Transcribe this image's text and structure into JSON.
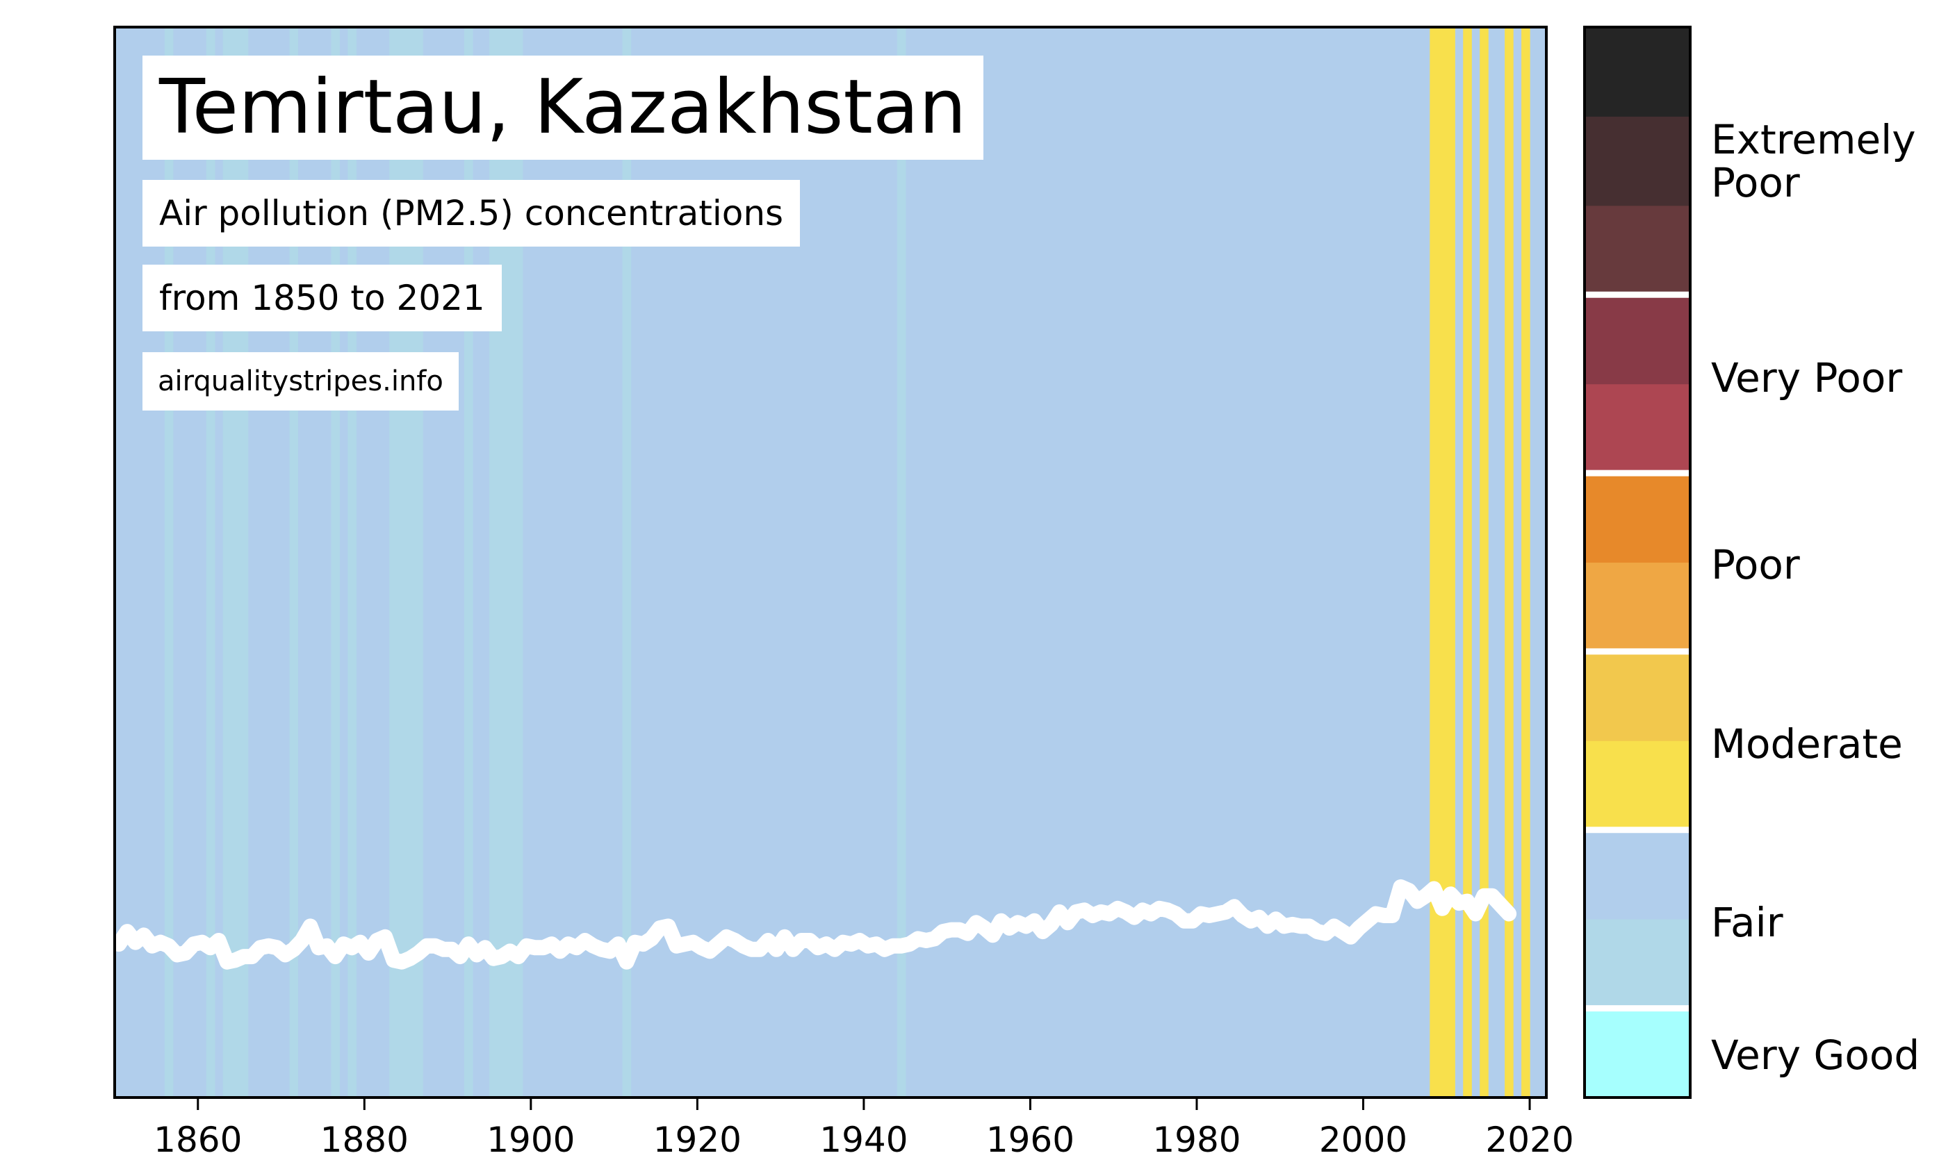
{
  "title": "Temirtau, Kazakhstan",
  "subtitle_line1": "Air pollution (PM2.5) concentrations",
  "subtitle_line2": "from 1850 to 2021",
  "source": "airqualitystripes.info",
  "colors": {
    "very_good": "#a6fffe",
    "fair_light": "#b0d8e8",
    "fair": "#b1ceec",
    "moderate_light": "#f8e04c",
    "moderate_dark": "#f2c84d",
    "poor_light": "#efa744",
    "poor_dark": "#e7892a",
    "very_poor_light": "#ad4652",
    "very_poor_dark": "#883a47",
    "extremely_poor_1": "#673a3d",
    "extremely_poor_2": "#462f31",
    "extremely_poor_3": "#252525",
    "line": "#ffffff"
  },
  "colorbar": {
    "labels": [
      "Very Good",
      "Fair",
      "Moderate",
      "Poor",
      "Very Poor",
      "Extremely Poor"
    ]
  },
  "chart_data": {
    "type": "heatmap",
    "title": "Temirtau, Kazakhstan",
    "xlim": [
      1850,
      2022
    ],
    "x_ticks": [
      1860,
      1880,
      1900,
      1920,
      1940,
      1960,
      1980,
      2000,
      2020
    ],
    "stripe_years_fair_light": [
      1856,
      1861,
      1863,
      1864,
      1865,
      1871,
      1876,
      1878,
      1883,
      1884,
      1885,
      1886,
      1892,
      1895,
      1896,
      1897,
      1898,
      1911,
      1944
    ],
    "stripe_years_moderate": [
      2008,
      2009,
      2010,
      2012,
      2014,
      2017,
      2019
    ],
    "line_series": {
      "x": [
        1850,
        1851,
        1852,
        1853,
        1854,
        1855,
        1856,
        1857,
        1858,
        1859,
        1860,
        1861,
        1862,
        1863,
        1864,
        1865,
        1866,
        1867,
        1868,
        1869,
        1870,
        1871,
        1872,
        1873,
        1874,
        1875,
        1876,
        1877,
        1878,
        1879,
        1880,
        1881,
        1882,
        1883,
        1884,
        1885,
        1886,
        1887,
        1888,
        1889,
        1890,
        1891,
        1892,
        1893,
        1894,
        1895,
        1896,
        1897,
        1898,
        1899,
        1900,
        1901,
        1902,
        1903,
        1904,
        1905,
        1906,
        1907,
        1908,
        1909,
        1910,
        1911,
        1912,
        1913,
        1914,
        1915,
        1916,
        1917,
        1918,
        1919,
        1920,
        1921,
        1922,
        1923,
        1924,
        1925,
        1926,
        1927,
        1928,
        1929,
        1930,
        1931,
        1932,
        1933,
        1934,
        1935,
        1936,
        1937,
        1938,
        1939,
        1940,
        1941,
        1942,
        1943,
        1944,
        1945,
        1946,
        1947,
        1948,
        1949,
        1950,
        1951,
        1952,
        1953,
        1954,
        1955,
        1956,
        1957,
        1958,
        1959,
        1960,
        1961,
        1962,
        1963,
        1964,
        1965,
        1966,
        1967,
        1968,
        1969,
        1970,
        1971,
        1972,
        1973,
        1974,
        1975,
        1976,
        1977,
        1978,
        1979,
        1980,
        1981,
        1982,
        1983,
        1984,
        1985,
        1986,
        1987,
        1988,
        1989,
        1990,
        1991,
        1992,
        1993,
        1994,
        1995,
        1996,
        1997,
        1998,
        1999,
        2000,
        2001,
        2002,
        2003,
        2004,
        2005,
        2006,
        2007,
        2008,
        2009,
        2010,
        2011,
        2012,
        2013,
        2014,
        2015,
        2016,
        2017,
        2018,
        2019,
        2020,
        2021
      ],
      "y": [
        8.6,
        9.3,
        8.7,
        9.1,
        8.5,
        8.7,
        8.5,
        8.0,
        8.1,
        8.6,
        8.7,
        8.4,
        8.8,
        7.6,
        7.7,
        7.9,
        7.9,
        8.4,
        8.5,
        8.4,
        8.0,
        8.3,
        8.8,
        9.6,
        8.4,
        8.5,
        7.9,
        8.6,
        8.4,
        8.7,
        8.1,
        8.8,
        9.0,
        7.7,
        7.6,
        7.8,
        8.1,
        8.5,
        8.5,
        8.3,
        8.3,
        7.9,
        8.6,
        8.0,
        8.4,
        7.8,
        7.9,
        8.2,
        7.9,
        8.5,
        8.4,
        8.4,
        8.6,
        8.2,
        8.6,
        8.4,
        8.8,
        8.5,
        8.3,
        8.2,
        8.6,
        7.6,
        8.7,
        8.6,
        8.9,
        9.5,
        9.6,
        8.5,
        8.6,
        8.7,
        8.4,
        8.2,
        8.6,
        9.0,
        8.8,
        8.5,
        8.3,
        8.3,
        8.8,
        8.3,
        9.0,
        8.3,
        8.8,
        8.8,
        8.4,
        8.6,
        8.3,
        8.7,
        8.6,
        8.8,
        8.5,
        8.6,
        8.3,
        8.5,
        8.5,
        8.6,
        8.9,
        8.8,
        8.9,
        9.3,
        9.4,
        9.4,
        9.2,
        9.8,
        9.5,
        9.1,
        9.9,
        9.5,
        9.8,
        9.6,
        9.9,
        9.3,
        9.7,
        10.4,
        9.8,
        10.4,
        10.5,
        10.2,
        10.4,
        10.3,
        10.6,
        10.4,
        10.1,
        10.5,
        10.3,
        10.6,
        10.5,
        10.3,
        9.9,
        9.9,
        10.3,
        10.2,
        10.3,
        10.4,
        10.7,
        10.2,
        9.9,
        10.1,
        9.6,
        10.0,
        9.6,
        9.7,
        9.6,
        9.6,
        9.3,
        9.2,
        9.6,
        9.3,
        9.0,
        9.5,
        9.9,
        10.3,
        10.2,
        10.2,
        11.8,
        11.6,
        11.0,
        11.3,
        11.7,
        10.6,
        11.4,
        10.9,
        11.0,
        10.3,
        11.3,
        11.3,
        10.8,
        10.3
      ]
    }
  }
}
